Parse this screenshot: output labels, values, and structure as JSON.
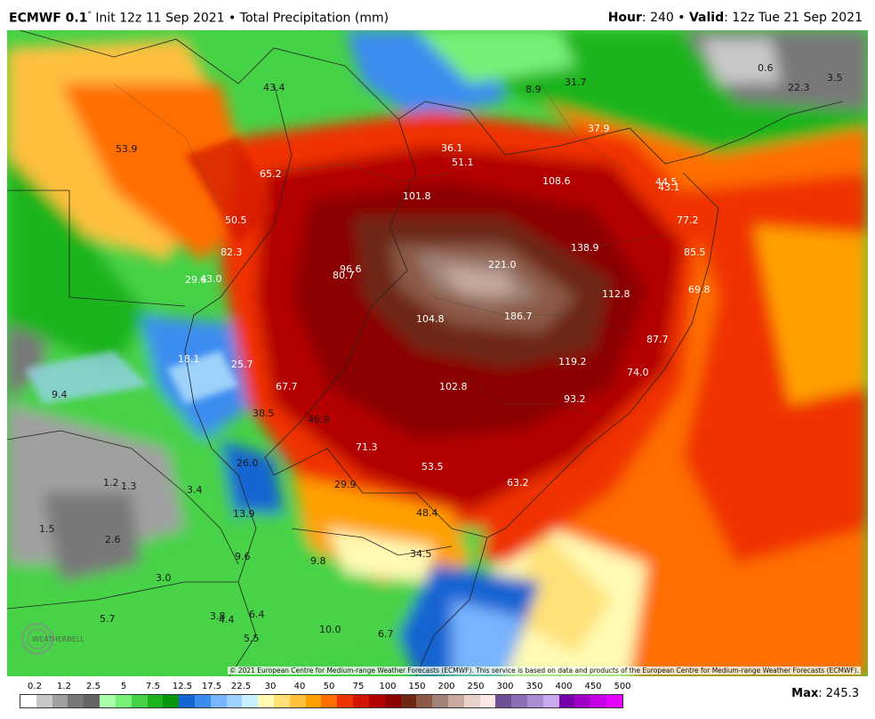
{
  "header": {
    "model": "ECMWF 0.1",
    "degree": "°",
    "init": "Init 12z 11 Sep 2021",
    "sep": "•",
    "product": "Total Precipitation (mm)",
    "hour_label": "Hour",
    "hour_value": ": 240",
    "valid_label": "Valid",
    "valid_value": ": 12z Tue 21 Sep 2021"
  },
  "map": {
    "values": [
      {
        "t": "43.4"
      },
      {
        "t": "8.9"
      },
      {
        "t": "31.7"
      },
      {
        "t": "0.6"
      },
      {
        "t": "3.5"
      },
      {
        "t": "22.3"
      },
      {
        "t": "53.9"
      },
      {
        "t": "36.1"
      },
      {
        "t": "51.1"
      },
      {
        "t": "37.9"
      },
      {
        "t": "65.2"
      },
      {
        "t": "108.6"
      },
      {
        "t": "44.5"
      },
      {
        "t": "43.1"
      },
      {
        "t": "101.8"
      },
      {
        "t": "50.5"
      },
      {
        "t": "77.2"
      },
      {
        "t": "138.9"
      },
      {
        "t": "82.3"
      },
      {
        "t": "85.5"
      },
      {
        "t": "221.0"
      },
      {
        "t": "96.6"
      },
      {
        "t": "80.7"
      },
      {
        "t": "29.6"
      },
      {
        "t": "43.0"
      },
      {
        "t": "112.8"
      },
      {
        "t": "69.8"
      },
      {
        "t": "104.8"
      },
      {
        "t": "186.7"
      },
      {
        "t": "87.7"
      },
      {
        "t": "18.1"
      },
      {
        "t": "25.7"
      },
      {
        "t": "119.2"
      },
      {
        "t": "74.0"
      },
      {
        "t": "9.4"
      },
      {
        "t": "67.7"
      },
      {
        "t": "102.8"
      },
      {
        "t": "93.2"
      },
      {
        "t": "38.5"
      },
      {
        "t": "46.9"
      },
      {
        "t": "71.3"
      },
      {
        "t": "26.0"
      },
      {
        "t": "53.5"
      },
      {
        "t": "1.2"
      },
      {
        "t": "1.3"
      },
      {
        "t": "3.4"
      },
      {
        "t": "29.9"
      },
      {
        "t": "63.2"
      },
      {
        "t": "13.9"
      },
      {
        "t": "48.4"
      },
      {
        "t": "1.5"
      },
      {
        "t": "2.6"
      },
      {
        "t": "34.5"
      },
      {
        "t": "9.6"
      },
      {
        "t": "9.8"
      },
      {
        "t": "3.0"
      },
      {
        "t": "6.4"
      },
      {
        "t": "5.7"
      },
      {
        "t": "3.8"
      },
      {
        "t": "4.4"
      },
      {
        "t": "10.0"
      },
      {
        "t": "6.7"
      },
      {
        "t": "5.5"
      }
    ],
    "copyright": "© 2021 European Centre for Medium-range Weather Forecasts (ECMWF). This service is based on data and products of the European Centre for Medium-range Weather Forecasts (ECMWF).",
    "logo_text": "WEATHERBELL"
  },
  "legend": {
    "labels": [
      "0.2",
      "1.2",
      "2.5",
      "5",
      "7.5",
      "12.5",
      "17.5",
      "22.5",
      "30",
      "40",
      "50",
      "75",
      "100",
      "150",
      "200",
      "250",
      "300",
      "350",
      "400",
      "450",
      "500"
    ],
    "colors": [
      "#ffffff",
      "#c8c8c8",
      "#a0a0a0",
      "#787878",
      "#646464",
      "#aaffaa",
      "#78f078",
      "#46d246",
      "#1eb41e",
      "#0a960a",
      "#1464d2",
      "#3c8cf0",
      "#78b4ff",
      "#a0d2ff",
      "#c8f0ff",
      "#fffab4",
      "#ffe178",
      "#ffc03c",
      "#ffa000",
      "#ff6e00",
      "#f03200",
      "#d21400",
      "#b40000",
      "#8c0000",
      "#6e2814",
      "#8c5a46",
      "#a08278",
      "#c8aaa0",
      "#e6d2c8",
      "#ffe6e6",
      "#6e5096",
      "#8c6eb4",
      "#aa8cd2",
      "#c8aaf0",
      "#7800aa",
      "#a000c8",
      "#c800e6",
      "#e600ff"
    ]
  },
  "max": {
    "label": "Max",
    "value": ": 245.3"
  }
}
